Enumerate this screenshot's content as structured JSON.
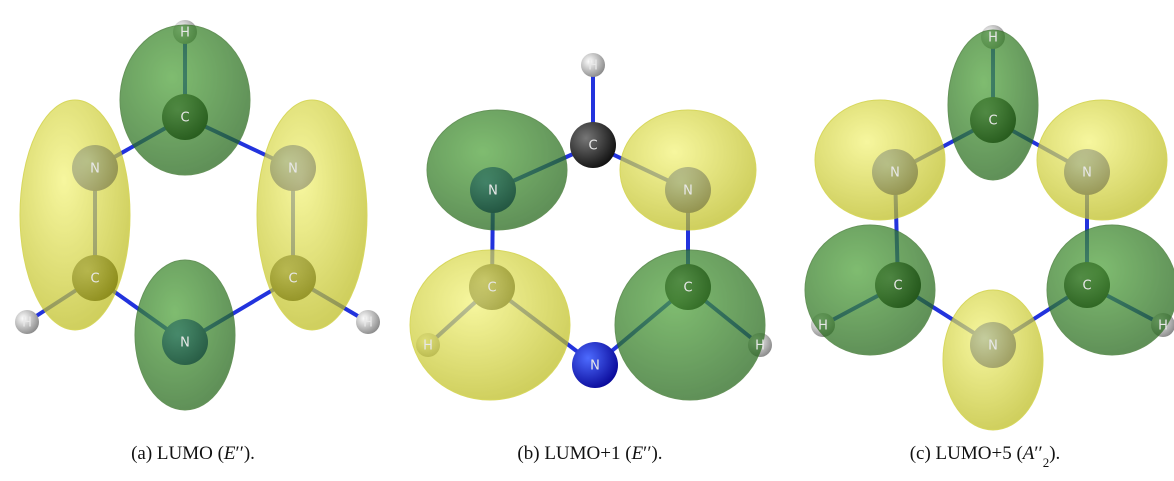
{
  "panels": [
    {
      "atoms": [
        "H",
        "C",
        "N",
        "N",
        "C",
        "C",
        "H",
        "H",
        "N"
      ],
      "caption": [
        {
          "text": "(a) LUMO ("
        },
        {
          "text": "E",
          "italic": true
        },
        {
          "text": "′′"
        },
        {
          "text": ")."
        }
      ]
    },
    {
      "atoms": [
        "H",
        "C",
        "N",
        "N",
        "C",
        "C",
        "H",
        "H",
        "N"
      ],
      "caption": [
        {
          "text": "(b) LUMO+1 ("
        },
        {
          "text": "E",
          "italic": true
        },
        {
          "text": "′′"
        },
        {
          "text": ")."
        }
      ]
    },
    {
      "atoms": [
        "H",
        "C",
        "N",
        "N",
        "C",
        "C",
        "H",
        "H",
        "N"
      ],
      "caption": [
        {
          "text": "(c) LUMO+5 ("
        },
        {
          "text": "A",
          "italic": true
        },
        {
          "text": "′′"
        },
        {
          "text": "2",
          "sub": true
        },
        {
          "text": ")."
        }
      ]
    }
  ]
}
